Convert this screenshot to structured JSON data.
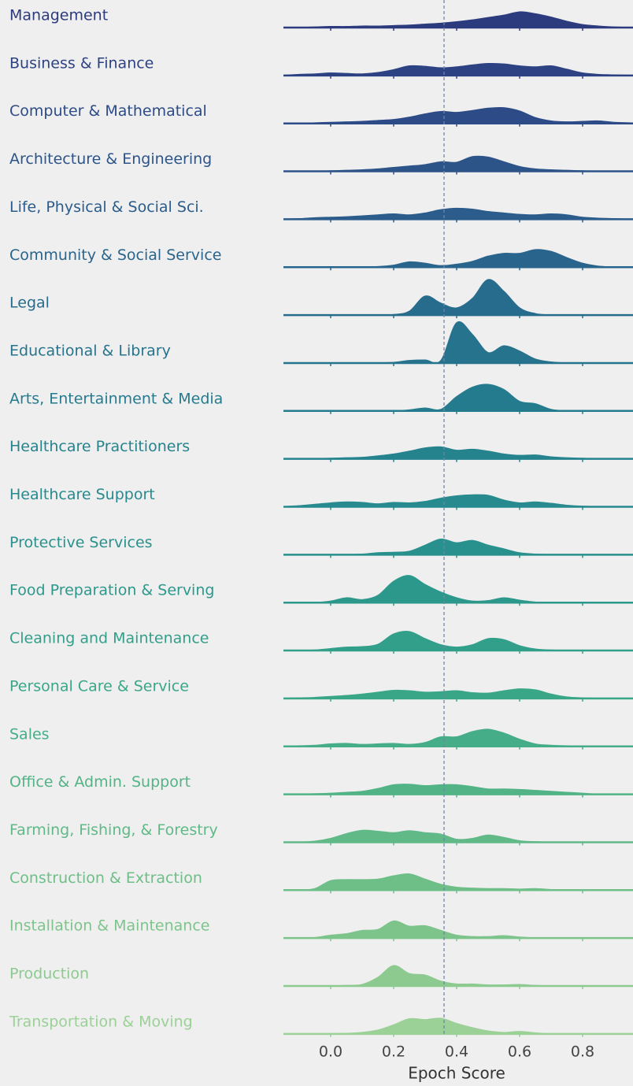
{
  "chart_data": {
    "type": "ridgeline",
    "x_label": "Epoch Score",
    "xlim": [
      -0.15,
      0.96
    ],
    "xticks": [
      {
        "value": 0,
        "label": "0.0"
      },
      0.2,
      0.4,
      0.6,
      0.8
    ],
    "reference_line": 0.36,
    "x": [
      -0.15,
      -0.1,
      -0.05,
      0,
      0.05,
      0.1,
      0.15,
      0.2,
      0.25,
      0.3,
      0.35,
      0.4,
      0.45,
      0.5,
      0.55,
      0.6,
      0.65,
      0.7,
      0.75,
      0.8,
      0.85,
      0.9,
      0.95
    ],
    "series": [
      {
        "name": "Management",
        "color": "#2c3a7e",
        "values": [
          0,
          0,
          0.1,
          0.2,
          0.2,
          0.3,
          0.3,
          0.4,
          0.5,
          0.7,
          0.9,
          1.2,
          1.6,
          2.1,
          2.6,
          3.3,
          2.9,
          2.2,
          1.3,
          0.6,
          0.3,
          0.1,
          0
        ]
      },
      {
        "name": "Business & Finance",
        "color": "#2d4283",
        "values": [
          0,
          0.2,
          0.3,
          0.5,
          0.4,
          0.3,
          0.6,
          1.2,
          2.0,
          1.9,
          1.6,
          1.8,
          2.2,
          2.5,
          2.4,
          2.0,
          1.8,
          2.0,
          1.3,
          0.5,
          0.2,
          0.1,
          0
        ]
      },
      {
        "name": "Computer & Mathematical",
        "color": "#2d4b87",
        "values": [
          0,
          0,
          0.1,
          0.2,
          0.3,
          0.4,
          0.6,
          0.8,
          1.3,
          2.0,
          2.5,
          2.3,
          2.7,
          3.2,
          3.3,
          2.6,
          1.2,
          0.5,
          0.3,
          0.4,
          0.5,
          0.2,
          0.1
        ]
      },
      {
        "name": "Architecture & Engineering",
        "color": "#2d5489",
        "values": [
          0,
          0,
          0,
          0.1,
          0.2,
          0.3,
          0.5,
          0.8,
          1.1,
          1.4,
          2.0,
          1.9,
          3.1,
          3.0,
          2.0,
          1.0,
          0.5,
          0.3,
          0.2,
          0.1,
          0,
          0,
          0
        ]
      },
      {
        "name": "Life, Physical & Social Sci.",
        "color": "#2b5c8b",
        "values": [
          0,
          0.1,
          0.3,
          0.4,
          0.5,
          0.7,
          0.9,
          1.1,
          0.9,
          1.3,
          2.0,
          2.3,
          2.1,
          1.6,
          1.3,
          1.0,
          0.9,
          1.1,
          0.9,
          0.4,
          0.2,
          0.1,
          0
        ]
      },
      {
        "name": "Community & Social Service",
        "color": "#29648c",
        "values": [
          0,
          0,
          0,
          0,
          0,
          0,
          0.1,
          0.4,
          1.1,
          0.8,
          0.3,
          0.6,
          1.2,
          2.3,
          2.9,
          2.9,
          3.7,
          3.3,
          2.0,
          0.8,
          0.2,
          0,
          0
        ]
      },
      {
        "name": "Legal",
        "color": "#276c8d",
        "values": [
          0,
          0,
          0,
          0,
          0,
          0,
          0,
          0.1,
          0.8,
          4.0,
          2.5,
          1.5,
          3.5,
          7.5,
          5.0,
          1.5,
          0.3,
          0,
          0,
          0,
          0,
          0,
          0
        ]
      },
      {
        "name": "Educational & Library",
        "color": "#26738d",
        "values": [
          0,
          0,
          0,
          0,
          0,
          0,
          0,
          0.1,
          0.5,
          0.6,
          0.5,
          8.5,
          6.0,
          2.2,
          3.6,
          2.5,
          0.8,
          0.2,
          0,
          0,
          0,
          0,
          0
        ]
      },
      {
        "name": "Arts, Entertainment & Media",
        "color": "#257b8e",
        "values": [
          0,
          0,
          0,
          0,
          0,
          0,
          0,
          0,
          0.2,
          0.6,
          0.3,
          3.0,
          5.0,
          5.6,
          4.5,
          2.0,
          1.5,
          0.3,
          0,
          0,
          0,
          0,
          0
        ]
      },
      {
        "name": "Healthcare Practitioners",
        "color": "#25838e",
        "values": [
          0,
          0,
          0,
          0.1,
          0.2,
          0.3,
          0.6,
          1.0,
          1.6,
          2.3,
          2.5,
          1.8,
          2.0,
          1.6,
          1.0,
          0.7,
          0.8,
          0.4,
          0.2,
          0.1,
          0,
          0,
          0
        ]
      },
      {
        "name": "Healthcare Support",
        "color": "#268a8e",
        "values": [
          0,
          0.2,
          0.5,
          0.8,
          1.0,
          0.9,
          0.6,
          0.9,
          0.8,
          1.1,
          1.8,
          2.3,
          2.5,
          2.4,
          1.4,
          0.8,
          1.0,
          0.7,
          0.3,
          0.1,
          0,
          0,
          0
        ]
      },
      {
        "name": "Protective Services",
        "color": "#28918d",
        "values": [
          0,
          0,
          0,
          0,
          0,
          0.1,
          0.4,
          0.5,
          0.7,
          2.0,
          3.3,
          2.5,
          3.0,
          2.0,
          1.2,
          0.4,
          0.1,
          0,
          0,
          0,
          0,
          0,
          0
        ]
      },
      {
        "name": "Food Preparation & Serving",
        "color": "#2c988b",
        "values": [
          0,
          0,
          0,
          0.3,
          1.0,
          0.6,
          1.5,
          4.5,
          5.7,
          3.8,
          2.2,
          1.0,
          0.3,
          0.4,
          1.0,
          0.5,
          0.1,
          0,
          0,
          0,
          0,
          0,
          0
        ]
      },
      {
        "name": "Cleaning and Maintenance",
        "color": "#329f8a",
        "values": [
          0,
          0,
          0.1,
          0.4,
          0.7,
          0.8,
          1.3,
          3.5,
          4.0,
          2.5,
          1.2,
          0.7,
          1.2,
          2.5,
          2.3,
          1.0,
          0.3,
          0.1,
          0,
          0,
          0,
          0,
          0
        ]
      },
      {
        "name": "Personal Care & Service",
        "color": "#3aa688",
        "values": [
          0,
          0.1,
          0.2,
          0.4,
          0.6,
          0.9,
          1.3,
          1.7,
          1.6,
          1.3,
          1.4,
          1.6,
          1.2,
          1.1,
          1.6,
          2.0,
          1.8,
          0.9,
          0.3,
          0.1,
          0,
          0,
          0
        ]
      },
      {
        "name": "Sales",
        "color": "#45ad87",
        "values": [
          0,
          0.1,
          0.2,
          0.5,
          0.6,
          0.4,
          0.5,
          0.6,
          0.4,
          0.8,
          2.0,
          2.0,
          3.1,
          3.6,
          2.8,
          1.5,
          0.5,
          0.2,
          0.1,
          0,
          0,
          0,
          0
        ]
      },
      {
        "name": "Office & Admin. Support",
        "color": "#52b386",
        "values": [
          0,
          0,
          0.1,
          0.2,
          0.4,
          0.6,
          1.2,
          2.0,
          2.1,
          1.8,
          2.0,
          2.0,
          1.6,
          1.1,
          1.1,
          1.0,
          0.8,
          0.6,
          0.4,
          0.2,
          0,
          0,
          0
        ]
      },
      {
        "name": "Farming, Fishing, & Forestry",
        "color": "#60b987",
        "values": [
          0,
          0,
          0.2,
          0.8,
          1.8,
          2.5,
          2.3,
          2.0,
          2.4,
          2.0,
          1.7,
          0.6,
          0.8,
          1.5,
          1.0,
          0.3,
          0.1,
          0,
          0,
          0,
          0,
          0,
          0
        ]
      },
      {
        "name": "Construction & Extraction",
        "color": "#6ebe88",
        "values": [
          0,
          0,
          0.3,
          2.0,
          2.2,
          2.2,
          2.3,
          3.0,
          3.4,
          2.3,
          1.2,
          0.6,
          0.4,
          0.3,
          0.3,
          0.2,
          0.3,
          0.1,
          0,
          0,
          0,
          0,
          0
        ]
      },
      {
        "name": "Installation & Maintenance",
        "color": "#7dc48b",
        "values": [
          0,
          0,
          0.1,
          0.6,
          0.9,
          1.6,
          1.8,
          3.6,
          2.5,
          2.6,
          1.6,
          0.6,
          0.3,
          0.3,
          0.5,
          0.2,
          0,
          0,
          0,
          0,
          0,
          0,
          0
        ]
      },
      {
        "name": "Production",
        "color": "#8cca90",
        "values": [
          0,
          0,
          0,
          0,
          0.1,
          0.3,
          1.8,
          4.3,
          2.6,
          2.3,
          1.0,
          0.4,
          0.4,
          0.2,
          0.2,
          0.3,
          0.1,
          0,
          0,
          0,
          0,
          0,
          0
        ]
      },
      {
        "name": "Transportation & Moving",
        "color": "#9bd097",
        "values": [
          0,
          0,
          0,
          0,
          0.1,
          0.3,
          0.8,
          1.9,
          3.2,
          3.0,
          3.3,
          2.2,
          1.3,
          0.6,
          0.3,
          0.5,
          0.2,
          0,
          0,
          0,
          0,
          0,
          0
        ]
      }
    ]
  }
}
